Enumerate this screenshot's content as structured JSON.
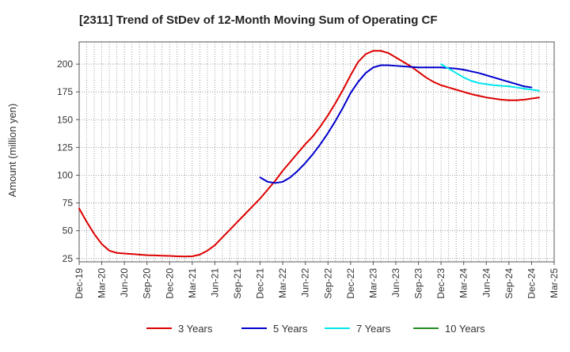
{
  "chart_data": {
    "type": "line",
    "title": "[2311]  Trend of StDev of 12-Month Moving Sum of Operating CF",
    "ylabel": "Amount (million yen)",
    "xlabel": "",
    "ylim": [
      22,
      220
    ],
    "yticks": [
      25,
      50,
      75,
      100,
      125,
      150,
      175,
      200
    ],
    "x_tick_labels": [
      "Dec-19",
      "Mar-20",
      "Jun-20",
      "Sep-20",
      "Dec-20",
      "Mar-21",
      "Jun-21",
      "Sep-21",
      "Dec-21",
      "Mar-22",
      "Jun-22",
      "Sep-22",
      "Dec-22",
      "Mar-23",
      "Jun-23",
      "Sep-23",
      "Dec-23",
      "Mar-24",
      "Jun-24",
      "Sep-24",
      "Dec-24",
      "Mar-25"
    ],
    "x_months": [
      "2019-12",
      "2020-01",
      "2020-02",
      "2020-03",
      "2020-04",
      "2020-05",
      "2020-06",
      "2020-07",
      "2020-08",
      "2020-09",
      "2020-10",
      "2020-11",
      "2020-12",
      "2021-01",
      "2021-02",
      "2021-03",
      "2021-04",
      "2021-05",
      "2021-06",
      "2021-07",
      "2021-08",
      "2021-09",
      "2021-10",
      "2021-11",
      "2021-12",
      "2022-01",
      "2022-02",
      "2022-03",
      "2022-04",
      "2022-05",
      "2022-06",
      "2022-07",
      "2022-08",
      "2022-09",
      "2022-10",
      "2022-11",
      "2022-12",
      "2023-01",
      "2023-02",
      "2023-03",
      "2023-04",
      "2023-05",
      "2023-06",
      "2023-07",
      "2023-08",
      "2023-09",
      "2023-10",
      "2023-11",
      "2023-12",
      "2024-01",
      "2024-02",
      "2024-03",
      "2024-04",
      "2024-05",
      "2024-06",
      "2024-07",
      "2024-08",
      "2024-09",
      "2024-10",
      "2024-11",
      "2024-12",
      "2025-01",
      "2025-02",
      "2025-03"
    ],
    "grid": true,
    "legend_position": "bottom",
    "series": [
      {
        "name": "3 Years",
        "color": "#dd0000",
        "start_index": 0,
        "values": [
          70,
          58,
          47,
          38,
          32,
          30,
          29.5,
          29,
          28.5,
          28,
          27.8,
          27.5,
          27.3,
          27,
          26.8,
          27,
          28.5,
          32,
          37,
          44,
          51,
          58,
          65,
          72,
          79,
          87,
          95,
          104,
          112,
          120,
          128,
          135,
          144,
          154,
          165,
          177,
          190,
          202,
          209,
          212,
          212,
          210,
          206,
          202,
          198,
          193,
          188,
          184,
          181,
          179,
          177,
          175,
          173,
          171.5,
          170,
          169,
          168,
          167.5,
          167.5,
          168,
          169,
          170
        ]
      },
      {
        "name": "5 Years",
        "color": "#0000cc",
        "start_index": 24,
        "values": [
          98,
          94,
          93,
          94,
          98,
          104,
          111,
          119,
          128,
          138,
          149,
          161,
          174,
          184,
          192,
          197,
          199,
          199,
          198.5,
          198,
          197.5,
          197,
          197,
          197,
          197,
          196.5,
          196,
          195,
          193.5,
          192,
          190,
          188,
          186,
          184,
          182,
          180,
          179
        ]
      },
      {
        "name": "7 Years",
        "color": "#00e5ee",
        "start_index": 48,
        "values": [
          200,
          196,
          192,
          188,
          185,
          183,
          182,
          181,
          180.5,
          180,
          179,
          178,
          177,
          176
        ]
      },
      {
        "name": "10 Years",
        "color": "#228b22",
        "start_index": 0,
        "values": []
      }
    ]
  }
}
